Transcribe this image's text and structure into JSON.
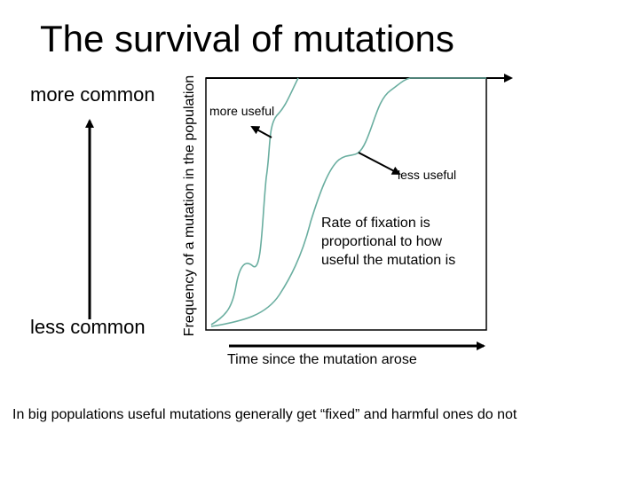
{
  "title": "The survival of mutations",
  "scale": {
    "top": "more common",
    "bottom": "less common"
  },
  "y_axis_label": "Frequency of a mutation in the population",
  "x_axis_label": "Time since the mutation arose",
  "annotations": {
    "more_useful": "more useful",
    "less_useful": "less useful"
  },
  "rate_note": {
    "lines": [
      "Rate of fixation is",
      "proportional to how",
      "useful the mutation is"
    ]
  },
  "footer": "In big populations useful mutations generally get “fixed” and harmful ones do not"
}
